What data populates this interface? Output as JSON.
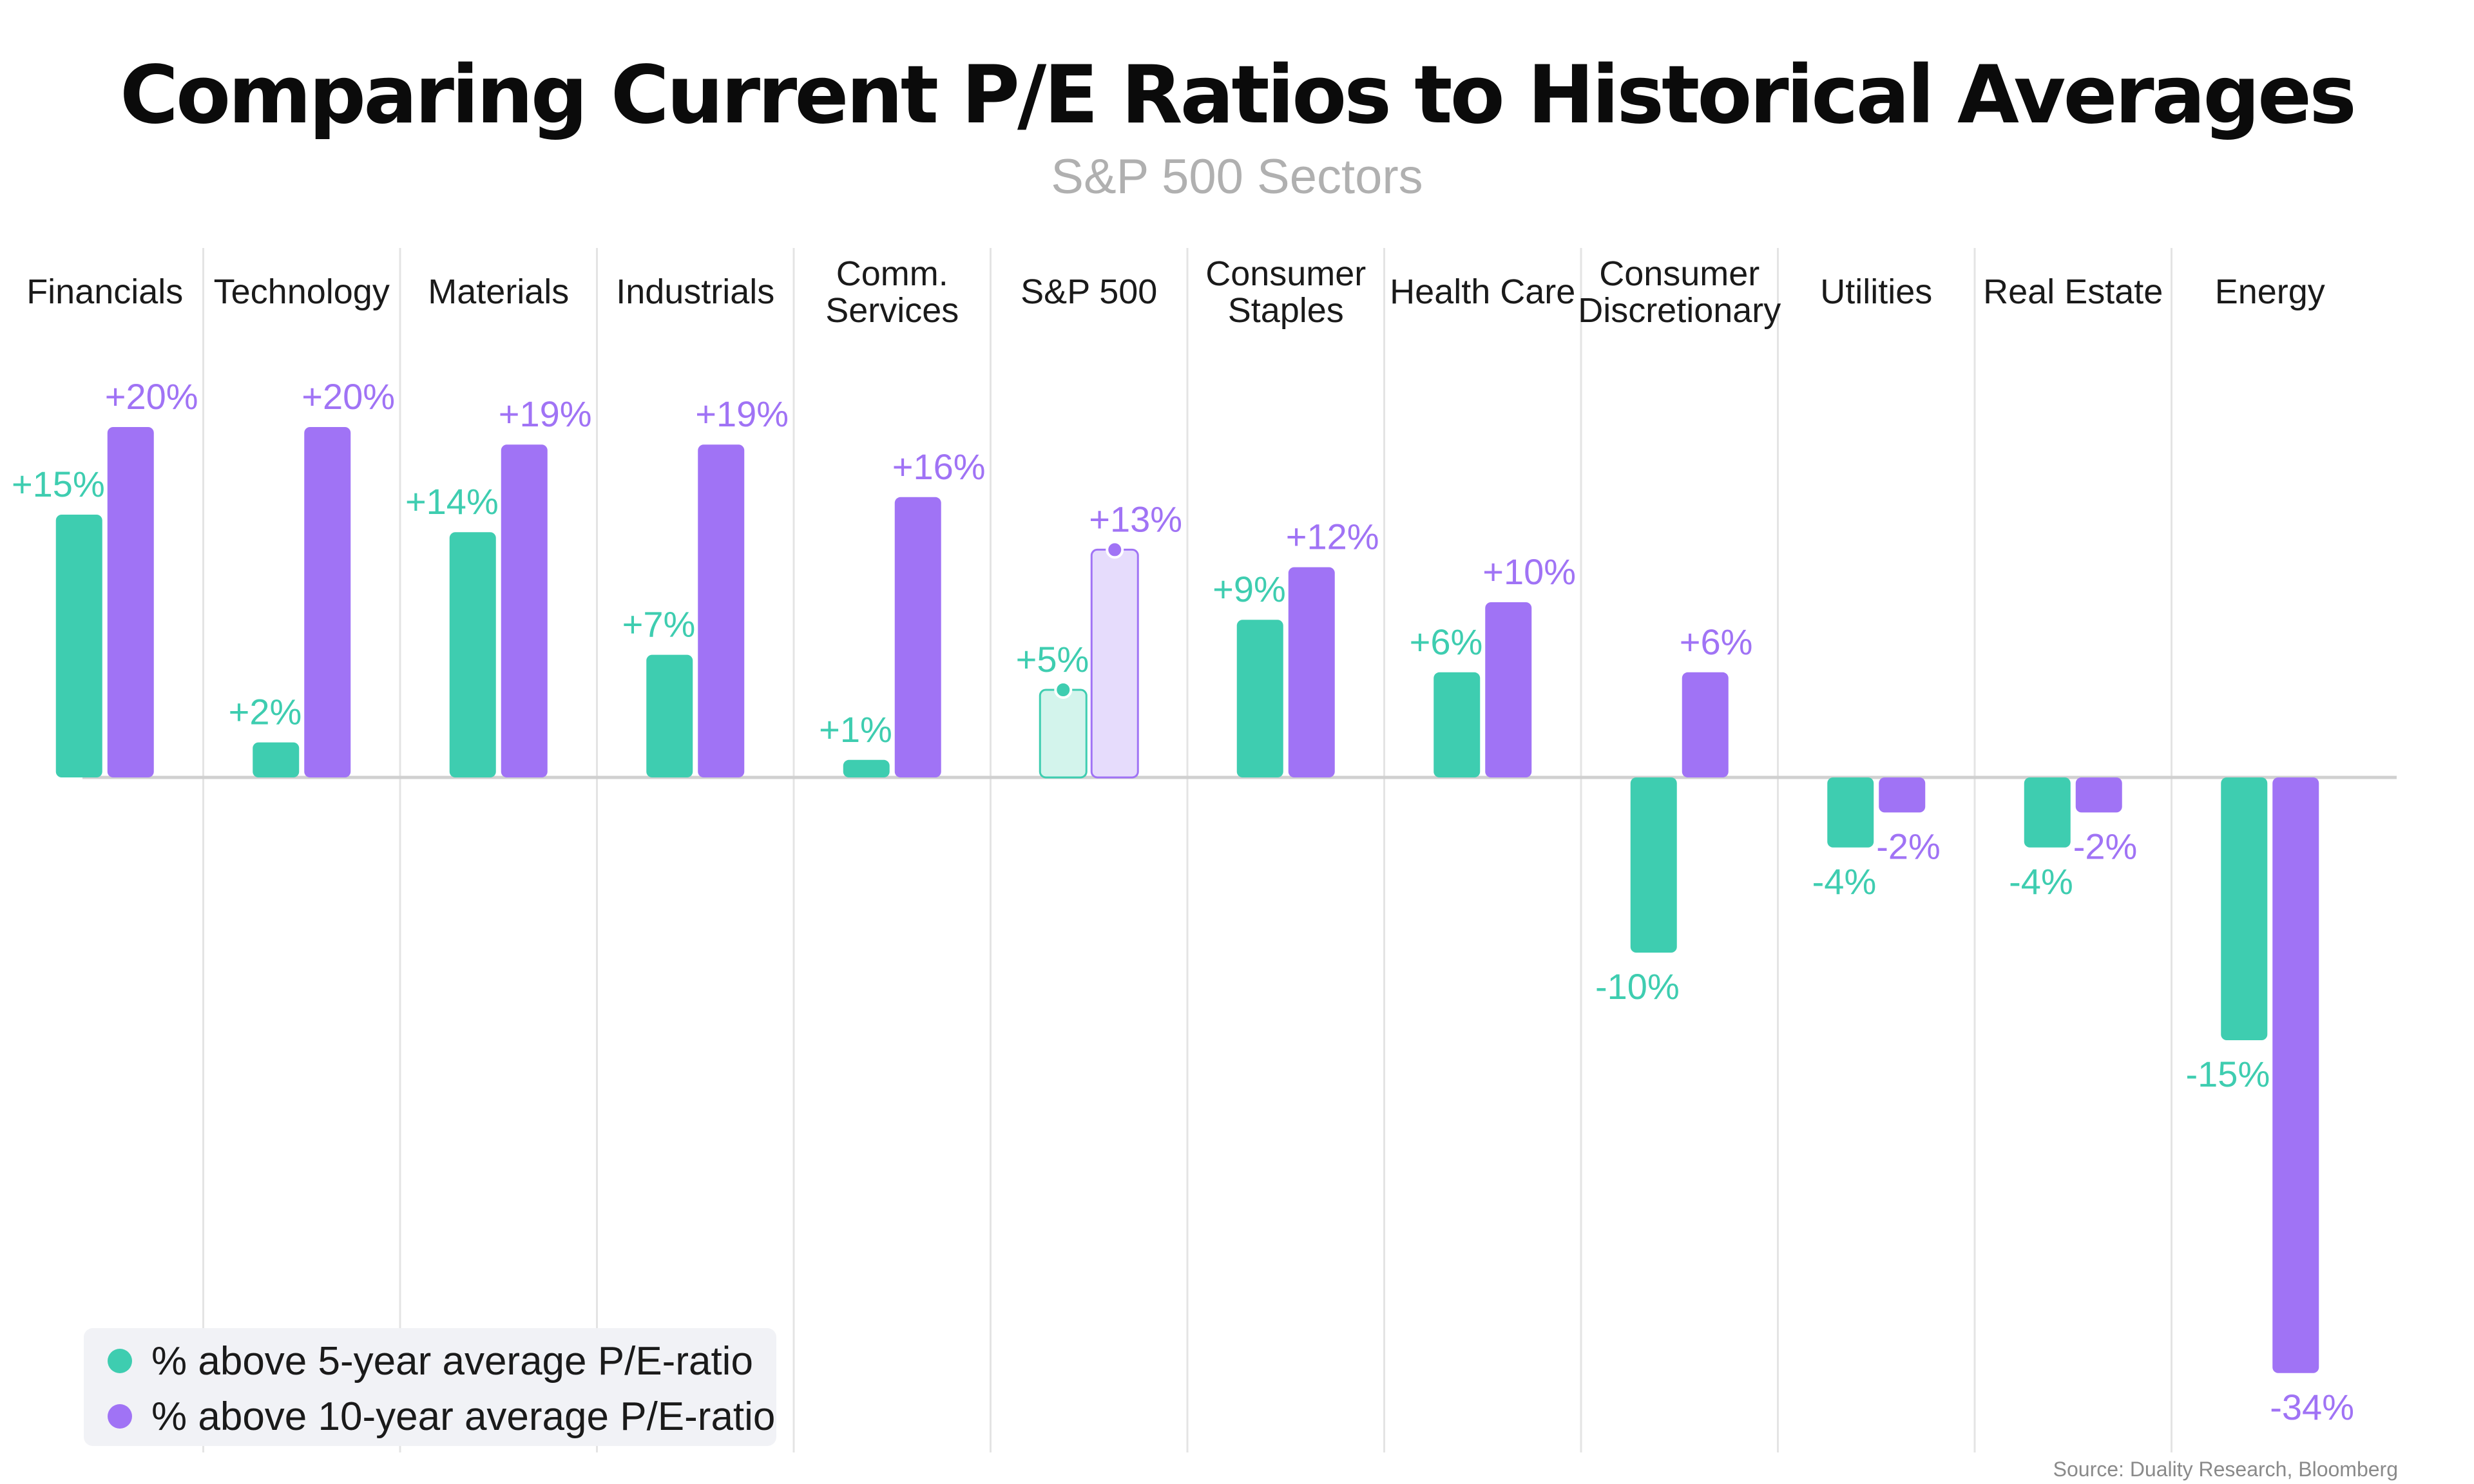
{
  "chart_data": {
    "type": "bar",
    "title": "Comparing Current P/E Ratios to Historical Averages",
    "subtitle": "S&P 500 Sectors",
    "categories": [
      "Financials",
      "Technology",
      "Materials",
      "Industrials",
      "Comm.\nServices",
      "S&P 500",
      "Consumer\nStaples",
      "Health Care",
      "Consumer\nDiscretionary",
      "Utilities",
      "Real Estate",
      "Energy"
    ],
    "series": [
      {
        "name": "% above 5-year average P/E-ratio",
        "color": "#3ecdb0",
        "values": [
          15,
          2,
          14,
          7,
          1,
          5,
          9,
          6,
          -10,
          -4,
          -4,
          -15
        ],
        "labels": [
          "+15%",
          "+2%",
          "+14%",
          "+7%",
          "+1%",
          "+5%",
          "+9%",
          "+6%",
          "-10%",
          "-4%",
          "-4%",
          "-15%"
        ]
      },
      {
        "name": "% above 10-year average P/E-ratio",
        "color": "#a073f5",
        "values": [
          20,
          20,
          19,
          19,
          16,
          13,
          12,
          10,
          6,
          -2,
          -2,
          -34
        ],
        "labels": [
          "+20%",
          "+20%",
          "+19%",
          "+19%",
          "+16%",
          "+13%",
          "+12%",
          "+10%",
          "+6%",
          "-2%",
          "-2%",
          "-34%"
        ]
      }
    ],
    "highlight_category": "S&P 500",
    "highlight_colors": {
      "5yr_fill": "#d3f4ec",
      "10yr_fill": "#e6dcfc"
    },
    "ylim": [
      -35,
      21
    ],
    "grid": "vertical-separators",
    "legend_position": "bottom-left",
    "source": "Source: Duality Research, Bloomberg"
  },
  "colors": {
    "teal": "#3ecdb0",
    "purple": "#a073f5",
    "title": "#0b0b0b",
    "subtitle": "#b0b0b0",
    "label": "#1a1a1a",
    "separator": "#e4e4e4",
    "baseline": "#d0d0d0",
    "legend_bg": "#f1f2f6",
    "source": "#8a8a8a"
  }
}
